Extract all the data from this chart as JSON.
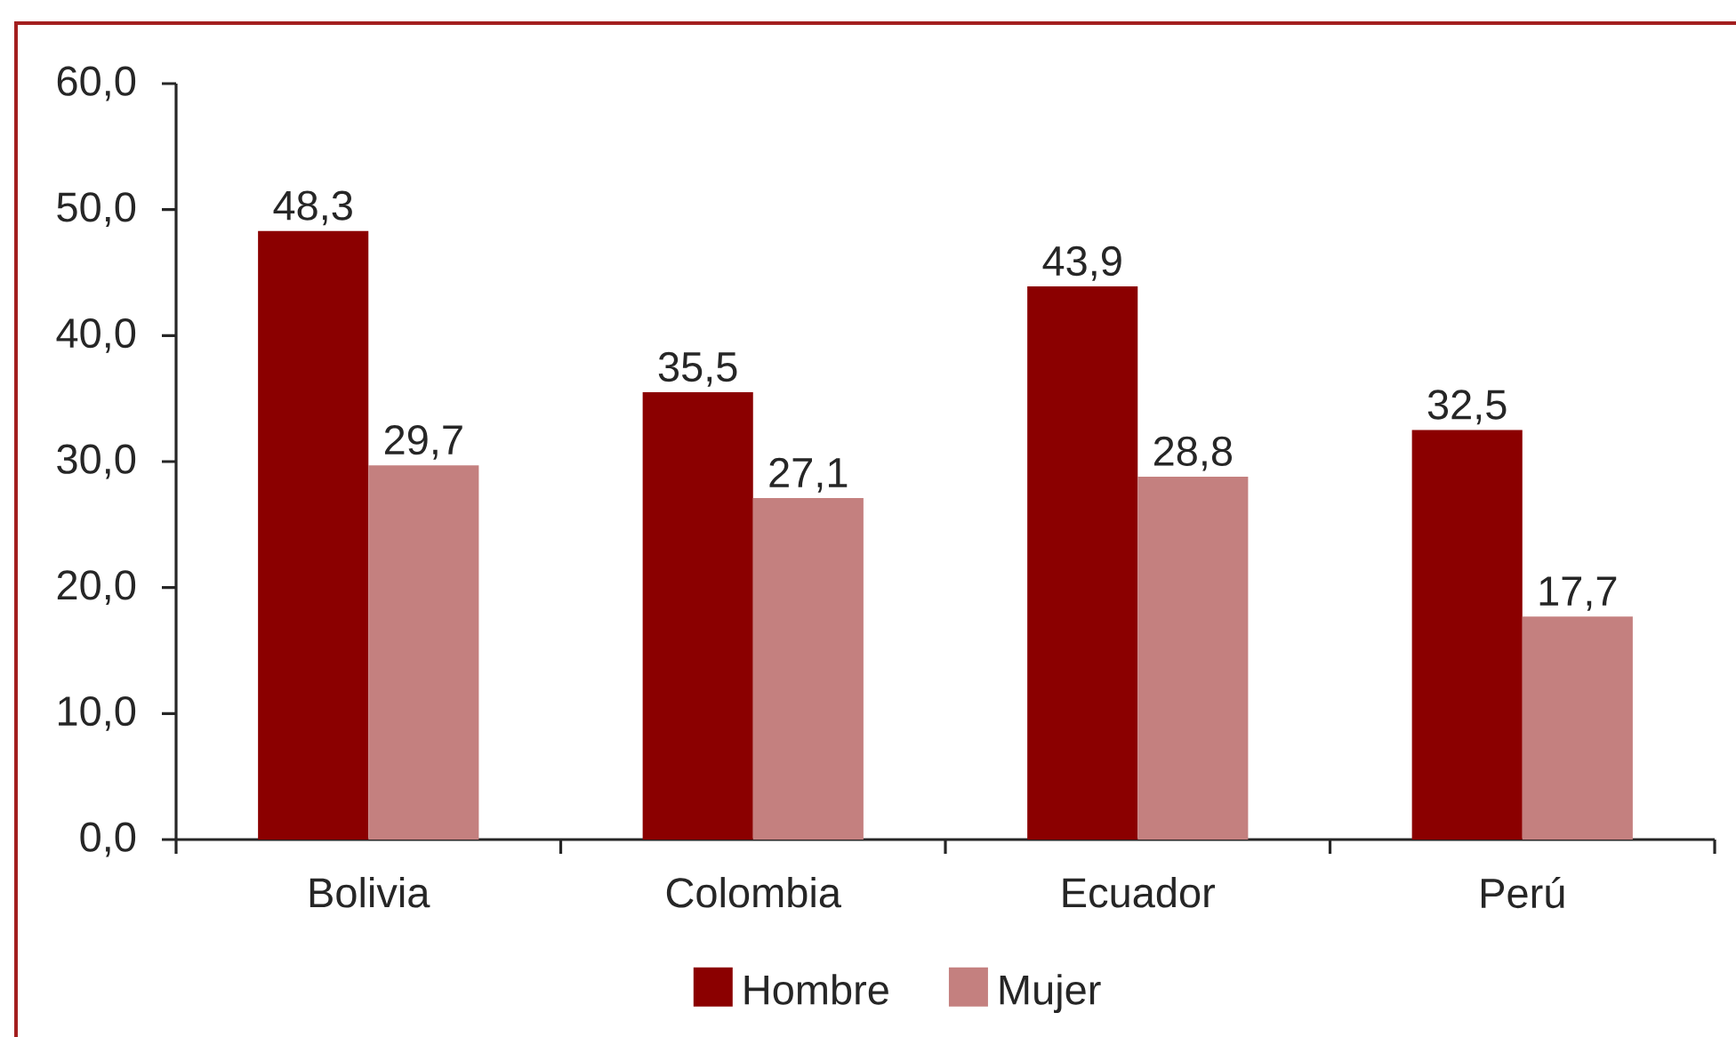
{
  "chart_data": {
    "type": "bar",
    "categories": [
      "Bolivia",
      "Colombia",
      "Ecuador",
      "Perú"
    ],
    "series": [
      {
        "name": "Hombre",
        "color": "#8b0000",
        "values": [
          48.3,
          35.5,
          43.9,
          32.5
        ],
        "value_labels": [
          "48,3",
          "35,5",
          "43,9",
          "32,5"
        ]
      },
      {
        "name": "Mujer",
        "color": "#c4807f",
        "values": [
          29.7,
          27.1,
          28.8,
          17.7
        ],
        "value_labels": [
          "29,7",
          "27,1",
          "28,8",
          "17,7"
        ]
      }
    ],
    "ylim": [
      0,
      60
    ],
    "yticks": [
      {
        "value": 0,
        "label": "0,0"
      },
      {
        "value": 10,
        "label": "10,0"
      },
      {
        "value": 20,
        "label": "20,0"
      },
      {
        "value": 30,
        "label": "30,0"
      },
      {
        "value": 40,
        "label": "40,0"
      },
      {
        "value": 50,
        "label": "50,0"
      },
      {
        "value": 60,
        "label": "60,0"
      }
    ],
    "legend": "bottom"
  }
}
